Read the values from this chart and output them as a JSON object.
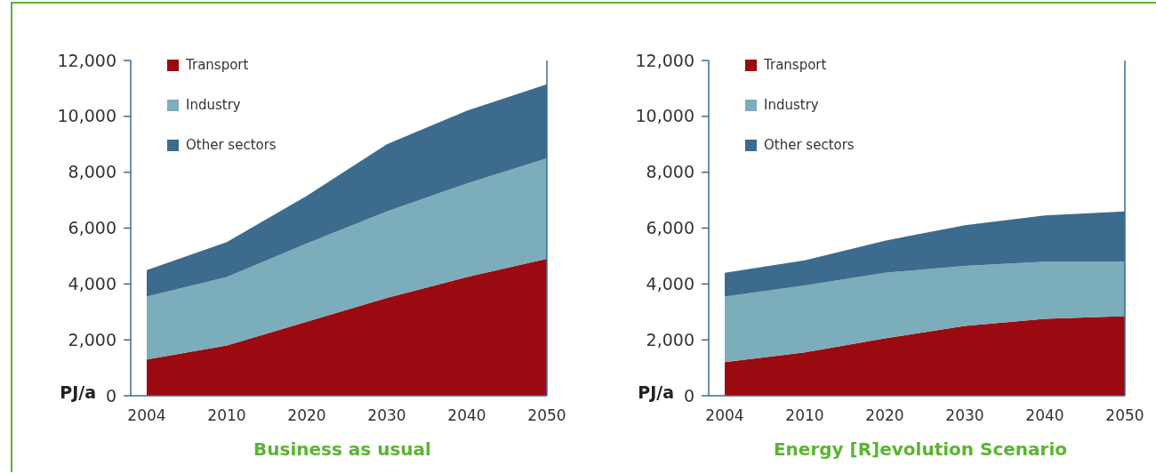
{
  "chart_data": [
    {
      "type": "area",
      "stacked": true,
      "title": "Business as usual",
      "ylabel": "PJ/a",
      "categories": [
        "2004",
        "2010",
        "2020",
        "2030",
        "2040",
        "2050"
      ],
      "ylim": [
        0,
        12000
      ],
      "yticks": [
        {
          "value": 0,
          "label": "0"
        },
        {
          "value": 2000,
          "label": "2,000"
        },
        {
          "value": 4000,
          "label": "4,000"
        },
        {
          "value": 6000,
          "label": "6,000"
        },
        {
          "value": 8000,
          "label": "8,000"
        },
        {
          "value": 10000,
          "label": "10,000"
        },
        {
          "value": 12000,
          "label": "12,000"
        }
      ],
      "legend": "top left",
      "grid": false,
      "series": [
        {
          "name": "Transport",
          "color": "#9b0a11",
          "values": [
            1300,
            1800,
            2650,
            3500,
            4250,
            4900
          ]
        },
        {
          "name": "Industry",
          "color": "#7badbb",
          "values": [
            2250,
            2450,
            2800,
            3100,
            3350,
            3600
          ]
        },
        {
          "name": "Other sectors",
          "color": "#3d6b8e",
          "values": [
            950,
            1250,
            1700,
            2400,
            2600,
            2650
          ]
        }
      ]
    },
    {
      "type": "area",
      "stacked": true,
      "title": "Energy [R]evolution Scenario",
      "ylabel": "PJ/a",
      "categories": [
        "2004",
        "2010",
        "2020",
        "2030",
        "2040",
        "2050"
      ],
      "ylim": [
        0,
        12000
      ],
      "yticks": [
        {
          "value": 0,
          "label": "0"
        },
        {
          "value": 2000,
          "label": "2,000"
        },
        {
          "value": 4000,
          "label": "4,000"
        },
        {
          "value": 6000,
          "label": "6,000"
        },
        {
          "value": 8000,
          "label": "8,000"
        },
        {
          "value": 10000,
          "label": "10,000"
        },
        {
          "value": 12000,
          "label": "12,000"
        }
      ],
      "legend": "top left",
      "grid": false,
      "series": [
        {
          "name": "Transport",
          "color": "#9b0a11",
          "values": [
            1200,
            1550,
            2050,
            2500,
            2750,
            2850
          ]
        },
        {
          "name": "Industry",
          "color": "#7badbb",
          "values": [
            2350,
            2400,
            2350,
            2150,
            2050,
            1950
          ]
        },
        {
          "name": "Other sectors",
          "color": "#3d6b8e",
          "values": [
            850,
            900,
            1150,
            1450,
            1650,
            1800
          ]
        }
      ]
    }
  ]
}
